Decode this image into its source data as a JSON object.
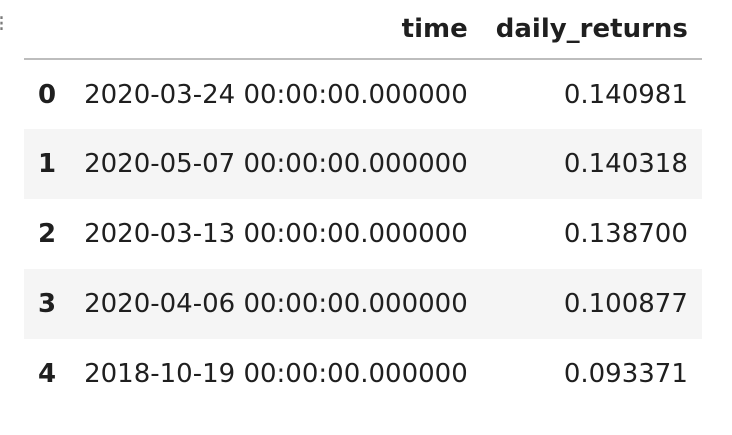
{
  "table": {
    "columns": [
      "",
      "time",
      "daily_returns"
    ],
    "rows": [
      {
        "index": "0",
        "time": "2020-03-24 00:00:00.000000",
        "daily_returns": "0.140981"
      },
      {
        "index": "1",
        "time": "2020-05-07 00:00:00.000000",
        "daily_returns": "0.140318"
      },
      {
        "index": "2",
        "time": "2020-03-13 00:00:00.000000",
        "daily_returns": "0.138700"
      },
      {
        "index": "3",
        "time": "2020-04-06 00:00:00.000000",
        "daily_returns": "0.100877"
      },
      {
        "index": "4",
        "time": "2018-10-19 00:00:00.000000",
        "daily_returns": "0.093371"
      }
    ]
  },
  "colors": {
    "row_stripe": "#f5f5f5",
    "header_rule": "#bdbdbd",
    "text": "#1f1f1f"
  }
}
